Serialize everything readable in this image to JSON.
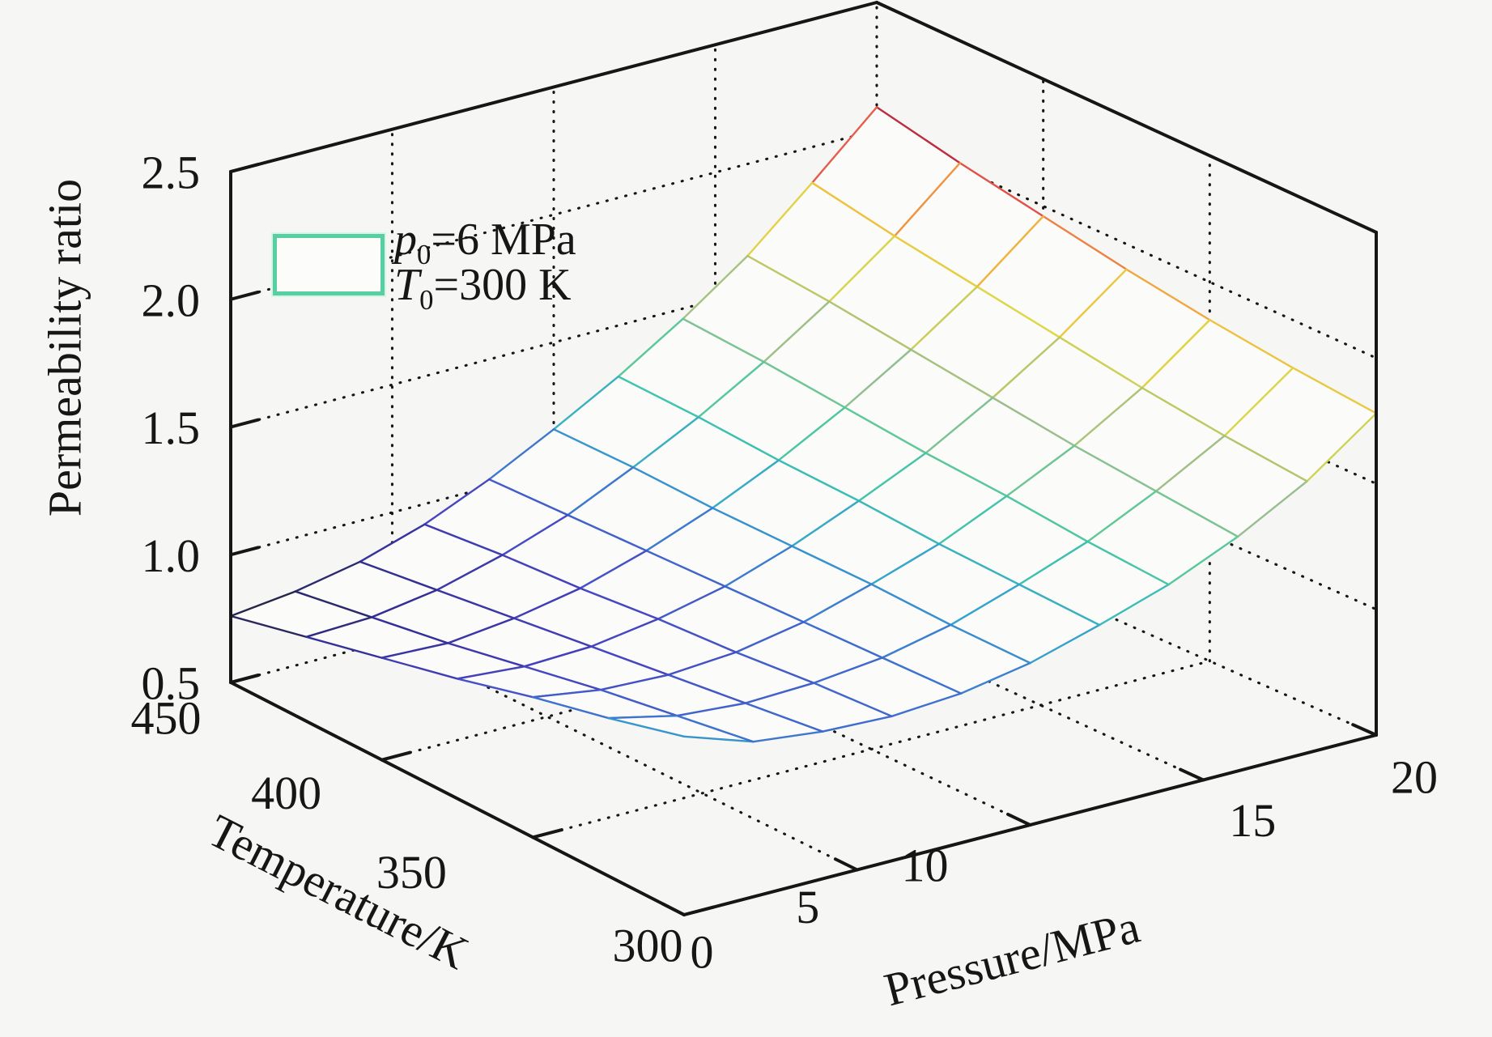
{
  "figure": {
    "background": "#f6f6f4",
    "axis_color": "#161616"
  },
  "chart_data": {
    "type": "3d-mesh-surface",
    "title": "",
    "zlabel": "Permeability ratio",
    "xlabel": "Pressure/MPa",
    "ylabel": "Temperature/K",
    "z_axis": {
      "range": [
        0.5,
        2.5
      ],
      "tick_values": [
        0.5,
        1.0,
        1.5,
        2.0,
        2.5
      ],
      "tick_labels": [
        "0.5",
        "1.0",
        "1.5",
        "2.0",
        "2.5"
      ],
      "gridline_values": [
        1.0,
        1.5,
        2.0
      ]
    },
    "pressure_axis": {
      "range": [
        0,
        20
      ],
      "tick_values": [
        0,
        5,
        10,
        15,
        20
      ],
      "tick_labels": [
        "0",
        "5",
        "10",
        "15",
        "20"
      ],
      "gridline_values": [
        5,
        10,
        15
      ]
    },
    "temperature_axis": {
      "range": [
        300,
        450
      ],
      "tick_values": [
        450,
        400,
        350,
        300
      ],
      "tick_labels": [
        "450",
        "400",
        "350",
        "300"
      ],
      "gridline_values": [
        350,
        400
      ]
    },
    "legend": {
      "swatch_color": "#56cfa2",
      "line1": {
        "var": "p",
        "sub": "0",
        "rest": "=6 MPa"
      },
      "line2": {
        "var": "T",
        "sub": "0",
        "rest": "=300 K"
      }
    },
    "surface": {
      "pressure": [
        0,
        2,
        4,
        6,
        8,
        10,
        12,
        14,
        16,
        18,
        20
      ],
      "temperature": [
        300,
        325,
        350,
        375,
        400,
        425,
        450
      ],
      "permeability_ratio": [
        [
          1.2,
          1.11,
          1.08,
          1.07,
          1.09,
          1.14,
          1.22,
          1.31,
          1.43,
          1.58,
          1.78
        ],
        [
          1.12,
          1.06,
          1.04,
          1.05,
          1.08,
          1.14,
          1.23,
          1.33,
          1.46,
          1.61,
          1.81
        ],
        [
          1.05,
          1.01,
          1.0,
          1.02,
          1.07,
          1.15,
          1.24,
          1.36,
          1.49,
          1.65,
          1.85
        ],
        [
          0.97,
          0.95,
          0.96,
          1.0,
          1.06,
          1.15,
          1.26,
          1.38,
          1.53,
          1.7,
          1.9
        ],
        [
          0.9,
          0.89,
          0.92,
          0.97,
          1.05,
          1.15,
          1.27,
          1.41,
          1.57,
          1.75,
          1.96
        ],
        [
          0.83,
          0.84,
          0.88,
          0.95,
          1.04,
          1.16,
          1.29,
          1.44,
          1.61,
          1.8,
          2.02
        ],
        [
          0.76,
          0.79,
          0.84,
          0.92,
          1.03,
          1.16,
          1.3,
          1.46,
          1.64,
          1.86,
          2.09
        ]
      ]
    },
    "color_range": [
      0.76,
      2.09
    ],
    "colormap": [
      [
        0.0,
        "#23233e"
      ],
      [
        0.08,
        "#34309a"
      ],
      [
        0.16,
        "#4743c0"
      ],
      [
        0.24,
        "#3f6fd0"
      ],
      [
        0.32,
        "#35a3cc"
      ],
      [
        0.4,
        "#3fc4ae"
      ],
      [
        0.48,
        "#62c896"
      ],
      [
        0.56,
        "#99bd90"
      ],
      [
        0.64,
        "#b9c66a"
      ],
      [
        0.72,
        "#dcd84a"
      ],
      [
        0.8,
        "#eec43e"
      ],
      [
        0.86,
        "#f2973e"
      ],
      [
        0.92,
        "#e5544a"
      ],
      [
        1.0,
        "#a81a3e"
      ]
    ]
  }
}
